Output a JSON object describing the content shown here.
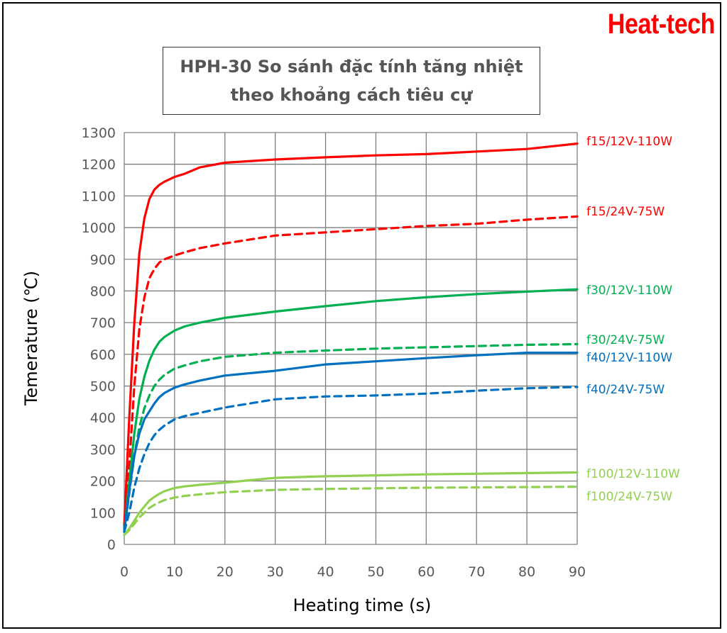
{
  "brand": "Heat-tech",
  "chart_data": {
    "type": "line",
    "title_line1": "HPH-30 So sánh đặc tính tăng nhiệt",
    "title_line2": "theo khoảng cách tiêu cự",
    "xlabel": "Heating time (s)",
    "ylabel": "Temerature (℃)",
    "xlim": [
      0,
      90
    ],
    "ylim": [
      0,
      1300
    ],
    "xticks": [
      0,
      10,
      20,
      30,
      40,
      50,
      60,
      70,
      80,
      90
    ],
    "yticks": [
      0,
      100,
      200,
      300,
      400,
      500,
      600,
      700,
      800,
      900,
      1000,
      1100,
      1200,
      1300
    ],
    "grid": true,
    "legend": "right",
    "series": [
      {
        "name": "f15/12V-110W",
        "color": "#ff0000",
        "dash": false,
        "x": [
          0,
          1,
          2,
          3,
          4,
          5,
          6,
          7,
          8,
          10,
          12,
          15,
          20,
          30,
          40,
          50,
          60,
          70,
          80,
          90
        ],
        "y": [
          60,
          400,
          700,
          920,
          1030,
          1090,
          1120,
          1135,
          1145,
          1160,
          1170,
          1190,
          1205,
          1215,
          1222,
          1228,
          1232,
          1240,
          1248,
          1265
        ]
      },
      {
        "name": "f15/24V-75W",
        "color": "#ff0000",
        "dash": true,
        "x": [
          0,
          1,
          2,
          3,
          4,
          5,
          6,
          7,
          8,
          10,
          12,
          15,
          20,
          30,
          40,
          50,
          60,
          70,
          80,
          90
        ],
        "y": [
          50,
          250,
          500,
          680,
          780,
          840,
          870,
          890,
          900,
          912,
          922,
          935,
          950,
          975,
          985,
          995,
          1005,
          1012,
          1025,
          1035
        ]
      },
      {
        "name": "f30/12V-110W",
        "color": "#00b050",
        "dash": false,
        "x": [
          0,
          1,
          2,
          3,
          4,
          5,
          6,
          7,
          8,
          10,
          12,
          15,
          20,
          30,
          40,
          50,
          60,
          70,
          80,
          90
        ],
        "y": [
          40,
          200,
          350,
          460,
          530,
          580,
          615,
          640,
          655,
          675,
          688,
          700,
          715,
          735,
          752,
          768,
          780,
          790,
          798,
          805
        ]
      },
      {
        "name": "f30/24V-75W",
        "color": "#00b050",
        "dash": true,
        "x": [
          0,
          1,
          2,
          3,
          4,
          5,
          6,
          7,
          8,
          10,
          12,
          15,
          20,
          30,
          40,
          50,
          60,
          70,
          80,
          90
        ],
        "y": [
          40,
          160,
          280,
          370,
          430,
          470,
          500,
          520,
          535,
          555,
          565,
          578,
          592,
          605,
          612,
          618,
          622,
          626,
          630,
          632
        ]
      },
      {
        "name": "f40/12V-110W",
        "color": "#0070c0",
        "dash": false,
        "x": [
          0,
          1,
          2,
          3,
          4,
          5,
          6,
          7,
          8,
          10,
          12,
          15,
          20,
          30,
          40,
          50,
          60,
          70,
          80,
          90
        ],
        "y": [
          40,
          170,
          280,
          350,
          395,
          420,
          445,
          465,
          478,
          495,
          505,
          517,
          533,
          548,
          568,
          578,
          588,
          597,
          605,
          605
        ]
      },
      {
        "name": "f40/24V-75W",
        "color": "#0070c0",
        "dash": true,
        "x": [
          0,
          1,
          2,
          3,
          4,
          5,
          6,
          7,
          8,
          10,
          12,
          15,
          20,
          30,
          40,
          50,
          60,
          70,
          80,
          90
        ],
        "y": [
          40,
          100,
          180,
          240,
          285,
          320,
          345,
          362,
          375,
          395,
          405,
          415,
          432,
          458,
          467,
          470,
          476,
          485,
          493,
          497
        ]
      },
      {
        "name": "f100/12V-110W",
        "color": "#92d050",
        "dash": false,
        "x": [
          0,
          1,
          2,
          3,
          4,
          5,
          6,
          7,
          8,
          10,
          12,
          15,
          20,
          30,
          40,
          50,
          60,
          70,
          80,
          90
        ],
        "y": [
          30,
          50,
          75,
          100,
          120,
          138,
          150,
          160,
          168,
          178,
          183,
          188,
          195,
          210,
          215,
          218,
          221,
          223,
          225,
          227
        ]
      },
      {
        "name": "f100/24V-75W",
        "color": "#92d050",
        "dash": true,
        "x": [
          0,
          1,
          2,
          3,
          4,
          5,
          6,
          7,
          8,
          10,
          12,
          15,
          20,
          30,
          40,
          50,
          60,
          70,
          80,
          90
        ],
        "y": [
          30,
          45,
          65,
          85,
          100,
          115,
          125,
          133,
          140,
          148,
          153,
          158,
          165,
          172,
          175,
          177,
          179,
          180,
          181,
          182
        ]
      }
    ]
  }
}
